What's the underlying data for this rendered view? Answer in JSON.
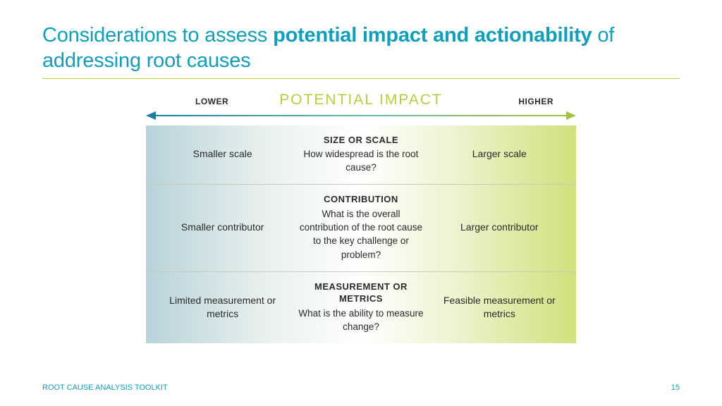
{
  "title": {
    "pre": "Considerations to assess ",
    "bold": "potential impact and actionability",
    "post": " of addressing root causes",
    "color": "#0e9fbf"
  },
  "rule_color": "#b7cf3a",
  "axis": {
    "lower": "LOWER",
    "higher": "HIGHER",
    "title": "POTENTIAL IMPACT",
    "title_color": "#b7cf3a",
    "gradient_left": "#1a7fa3",
    "gradient_mid": "#6fb6a8",
    "gradient_right": "#9fc63b",
    "left_arrow_color": "#1a7fa3",
    "right_arrow_color": "#9fc63b"
  },
  "band_gradient": {
    "left": "#b8d3da",
    "leftmid": "#e9f1ee",
    "mid": "#ffffff",
    "rightmid": "#eef3cf",
    "right": "#d2e07c"
  },
  "rows": [
    {
      "left": "Smaller scale",
      "heading": "SIZE OR SCALE",
      "desc": "How widespread is the root cause?",
      "right": "Larger scale"
    },
    {
      "left": "Smaller contributor",
      "heading": "CONTRIBUTION",
      "desc": "What is the overall contribution of the root cause to the key challenge or problem?",
      "right": "Larger contributor"
    },
    {
      "left": "Limited measurement or metrics",
      "heading": "MEASUREMENT OR METRICS",
      "desc": "What is the ability to measure change?",
      "right": "Feasible measurement or metrics"
    }
  ],
  "footer": {
    "left": "ROOT CAUSE ANALYSIS TOOLKIT",
    "page": "15",
    "color": "#0e9fbf"
  },
  "text_color": "#2a2a2a"
}
